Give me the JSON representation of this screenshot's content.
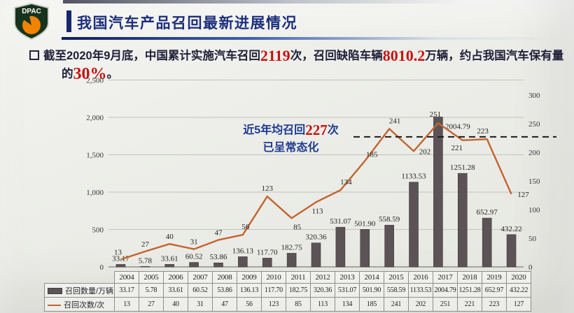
{
  "logo": {
    "text": "DPAC"
  },
  "header": {
    "title": "我国汽车产品召回最新进展情况"
  },
  "bullet": {
    "seg1": "截至2020年9月底，中国累计实施汽车召回",
    "num1": "2119",
    "seg2": "次，召回缺陷车辆",
    "num2": "8010.2",
    "seg3": "万辆，约占我国汽车保有量",
    "seg4": "的",
    "num3": "30%",
    "seg5": "。"
  },
  "annotation": {
    "pre": "近5年均召回",
    "num": "227",
    "post": "次",
    "line2": "已呈常态化"
  },
  "chart_data": {
    "type": "bar+line",
    "title": "",
    "categories": [
      "2004",
      "2005",
      "2006",
      "2007",
      "2008",
      "2009",
      "2010",
      "2011",
      "2012",
      "2013",
      "2014",
      "2015",
      "2016",
      "2017",
      "2018",
      "2019",
      "2020"
    ],
    "series": [
      {
        "name": "召回数量/万辆",
        "type": "bar",
        "axis": "left",
        "color": "#5c5356",
        "values": [
          "33.17",
          "5.78",
          "33.61",
          "60.52",
          "53.86",
          "136.13",
          "117.70",
          "182.75",
          "320.36",
          "531.07",
          "501.90",
          "558.59",
          "1133.53",
          "2004.79",
          "1251.28",
          "652.97",
          "432.22"
        ]
      },
      {
        "name": "召回次数/次",
        "type": "line",
        "axis": "right",
        "color": "#c2642f",
        "values": [
          "13",
          "27",
          "40",
          "31",
          "47",
          "56",
          "123",
          "85",
          "113",
          "134",
          "185",
          "241",
          "202",
          "251",
          "221",
          "223",
          "127"
        ]
      }
    ],
    "left_axis": {
      "min": 0,
      "max": 2500,
      "ticks": [
        "0",
        "500",
        "1,000",
        "1,500",
        "2,000",
        "2,500"
      ]
    },
    "right_axis": {
      "min": 0,
      "max": 300,
      "ticks": [
        "0",
        "50",
        "100",
        "150",
        "200",
        "250",
        "300"
      ]
    },
    "average_line": {
      "value": 227,
      "style": "dashed"
    },
    "grid": true,
    "legend_position": "table-bottom"
  }
}
